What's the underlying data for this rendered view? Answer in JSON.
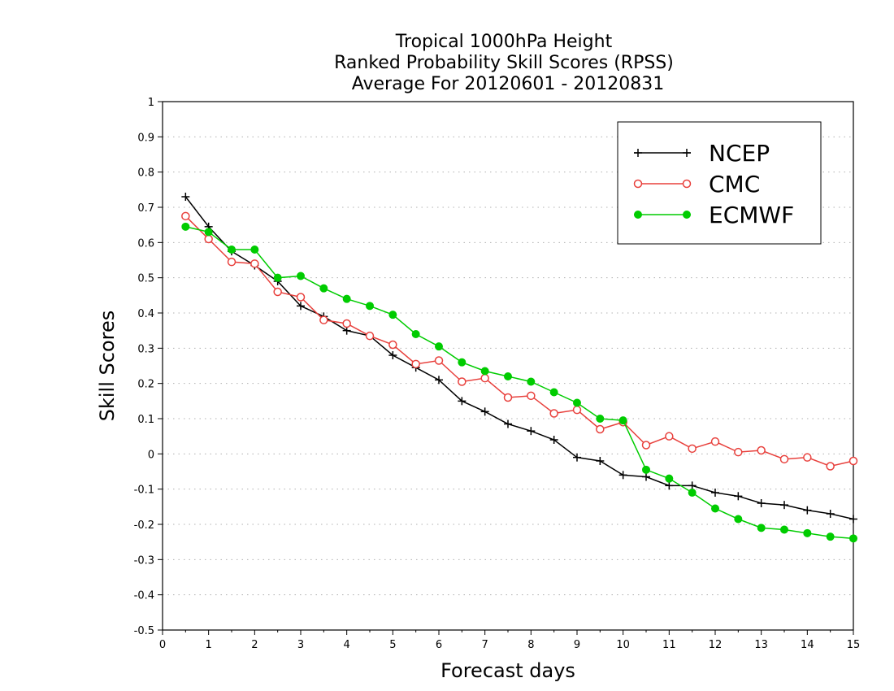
{
  "chart_data": {
    "type": "line",
    "title_lines": [
      "Tropical 1000hPa Height",
      "Ranked Probability Skill Scores (RPSS)",
      "Average For 20120601 - 20120831"
    ],
    "xlabel": "Forecast days",
    "ylabel": "Skill Scores",
    "xlim": [
      0,
      15
    ],
    "ylim": [
      -0.5,
      1
    ],
    "x_ticks": [
      0,
      1,
      2,
      3,
      4,
      5,
      6,
      7,
      8,
      9,
      10,
      11,
      12,
      13,
      14,
      15
    ],
    "x_tick_labels": [
      "0",
      "1",
      "2",
      "3",
      "4",
      "5",
      "6",
      "7",
      "8",
      "9",
      "10",
      "11",
      "12",
      "13",
      "14",
      "15"
    ],
    "y_ticks": [
      -0.5,
      -0.4,
      -0.3,
      -0.2,
      -0.1,
      0,
      0.1,
      0.2,
      0.3,
      0.4,
      0.5,
      0.6,
      0.7,
      0.8,
      0.9,
      1
    ],
    "y_tick_labels": [
      "-0.5",
      "-0.4",
      "-0.3",
      "-0.2",
      "-0.1",
      "0",
      "0.1",
      "0.2",
      "0.3",
      "0.4",
      "0.5",
      "0.6",
      "0.7",
      "0.8",
      "0.9",
      "1"
    ],
    "grid": "horizontal dotted",
    "legend_position": "top-right",
    "x": [
      0.5,
      1,
      1.5,
      2,
      2.5,
      3,
      3.5,
      4,
      4.5,
      5,
      5.5,
      6,
      6.5,
      7,
      7.5,
      8,
      8.5,
      9,
      9.5,
      10,
      10.5,
      11,
      11.5,
      12,
      12.5,
      13,
      13.5,
      14,
      14.5,
      15
    ],
    "series": [
      {
        "name": "NCEP",
        "color": "#000000",
        "marker": "plus",
        "values": [
          0.73,
          0.645,
          0.575,
          0.535,
          0.49,
          0.42,
          0.39,
          0.35,
          0.335,
          0.28,
          0.245,
          0.21,
          0.15,
          0.12,
          0.085,
          0.065,
          0.04,
          -0.01,
          -0.02,
          -0.06,
          -0.065,
          -0.09,
          -0.09,
          -0.11,
          -0.12,
          -0.14,
          -0.145,
          -0.16,
          -0.17,
          -0.185
        ]
      },
      {
        "name": "CMC",
        "color": "#e8403c",
        "marker": "open-circle",
        "values": [
          0.675,
          0.61,
          0.545,
          0.54,
          0.46,
          0.445,
          0.38,
          0.37,
          0.335,
          0.31,
          0.255,
          0.265,
          0.205,
          0.215,
          0.16,
          0.165,
          0.115,
          0.125,
          0.07,
          0.09,
          0.025,
          0.05,
          0.015,
          0.035,
          0.005,
          0.01,
          -0.015,
          -0.01,
          -0.035,
          -0.02
        ]
      },
      {
        "name": "ECMWF",
        "color": "#00cc00",
        "marker": "filled-circle",
        "values": [
          0.645,
          0.63,
          0.58,
          0.58,
          0.5,
          0.505,
          0.47,
          0.44,
          0.42,
          0.395,
          0.34,
          0.305,
          0.26,
          0.235,
          0.22,
          0.205,
          0.175,
          0.145,
          0.1,
          0.095,
          -0.045,
          -0.07,
          -0.11,
          -0.155,
          -0.185,
          -0.21,
          -0.215,
          -0.225,
          -0.235,
          -0.24
        ]
      }
    ]
  }
}
